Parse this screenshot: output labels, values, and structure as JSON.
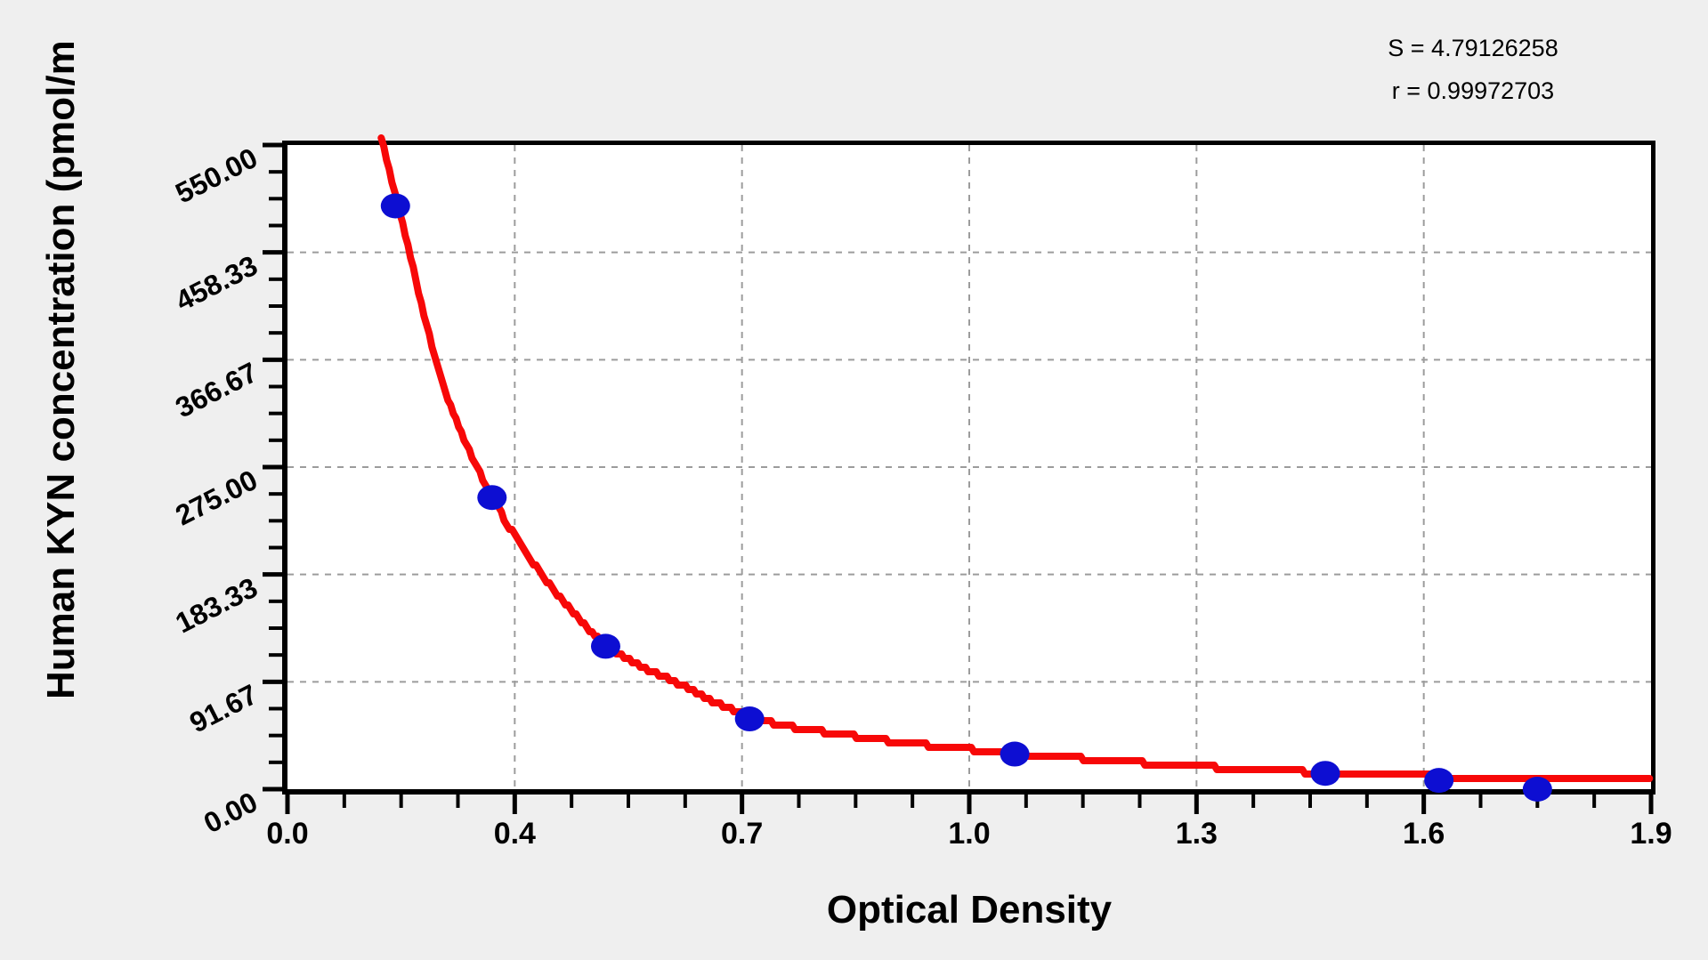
{
  "stats": {
    "s_text": "S = 4.79126258",
    "r_text": "r = 0.99972703"
  },
  "axes": {
    "x_title": "Optical Density",
    "y_title": "Human KYN concentration (pmol/m"
  },
  "colors": {
    "background": "#efefef",
    "plot_background": "#ffffff",
    "grid": "#9c9c9c",
    "axis": "#000000",
    "curve": "#f70808",
    "points": "#0d0ed2"
  },
  "chart_data": {
    "type": "scatter",
    "title": "",
    "xlabel": "Optical Density",
    "ylabel": "Human KYN concentration (pmol/m",
    "x_ticks": [
      0.0,
      0.4,
      0.7,
      1.0,
      1.3,
      1.6,
      1.9
    ],
    "x_tick_labels": [
      "0.0",
      "0.4",
      "0.7",
      "1.0",
      "1.3",
      "1.6",
      "1.9"
    ],
    "y_ticks": [
      0.0,
      91.67,
      183.33,
      275.0,
      366.67,
      458.33,
      550.0
    ],
    "y_tick_labels": [
      "0.00",
      "91.67",
      "183.33",
      "275.00",
      "366.67",
      "458.33",
      "550.00"
    ],
    "xlim": [
      0.0,
      1.9
    ],
    "ylim": [
      0,
      550
    ],
    "minor_divisions": 4,
    "grid": "dashed",
    "legend": "none",
    "annotations": [
      "S = 4.79126258",
      "r = 0.99972703"
    ],
    "series": [
      {
        "name": "standard-points",
        "type": "scatter",
        "color": "#0d0ed2",
        "points": [
          [
            0.19,
            498
          ],
          [
            0.36,
            249
          ],
          [
            0.52,
            122
          ],
          [
            0.71,
            60
          ],
          [
            1.06,
            30
          ],
          [
            1.47,
            13.5
          ],
          [
            1.62,
            7.5
          ],
          [
            1.75,
            0
          ]
        ]
      },
      {
        "name": "fitted-curve",
        "type": "line",
        "color": "#f70808",
        "points": [
          [
            0.165,
            556
          ],
          [
            0.195,
            498
          ],
          [
            0.27,
            352
          ],
          [
            0.36,
            250
          ],
          [
            0.44,
            180
          ],
          [
            0.52,
            124
          ],
          [
            0.62,
            89
          ],
          [
            0.71,
            62
          ],
          [
            0.85,
            45
          ],
          [
            1.0,
            34
          ],
          [
            1.065,
            30.5
          ],
          [
            1.25,
            21.5
          ],
          [
            1.47,
            14
          ],
          [
            1.63,
            11
          ],
          [
            1.78,
            9.2
          ],
          [
            1.9,
            8.6
          ]
        ]
      }
    ]
  }
}
